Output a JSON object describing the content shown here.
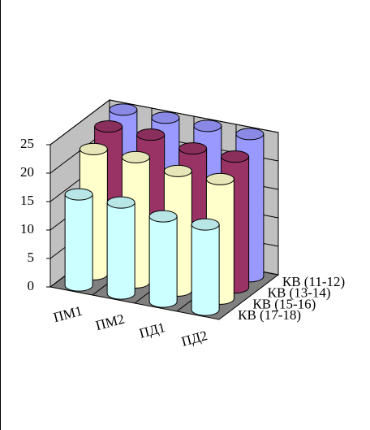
{
  "chart_data": {
    "type": "bar3d-cylinder",
    "categories": [
      "ПМ1",
      "ПМ2",
      "ПД1",
      "ПД2"
    ],
    "series": [
      {
        "name": "КВ (11-12)",
        "color": "#9999ff",
        "values": [
          25,
          25,
          25,
          25
        ]
      },
      {
        "name": "КВ (13-14)",
        "color": "#993366",
        "values": [
          24,
          24,
          23,
          23
        ]
      },
      {
        "name": "КВ (15-16)",
        "color": "#ffffcc",
        "values": [
          22,
          22,
          21,
          21
        ]
      },
      {
        "name": "КВ (17-18)",
        "color": "#ccffff",
        "values": [
          16,
          16,
          15,
          15
        ]
      }
    ],
    "ylim": [
      0,
      25
    ],
    "yticks": [
      0,
      5,
      10,
      15,
      20,
      25
    ],
    "grid": true
  }
}
